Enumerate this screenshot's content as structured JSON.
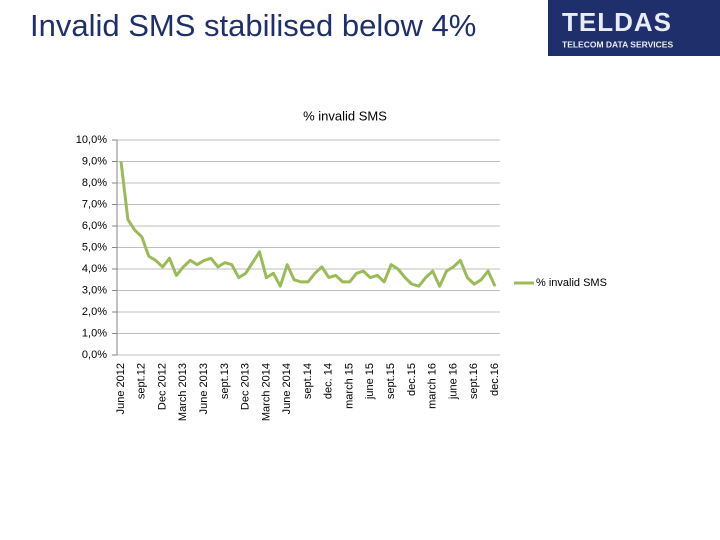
{
  "slide": {
    "title": "Invalid SMS stabilised below 4%",
    "logo": {
      "name": "TELDAS",
      "tagline": "TELECOM DATA SERVICES"
    }
  },
  "chart_data": {
    "type": "line",
    "title": "% invalid SMS",
    "categories": [
      "June 2012",
      null,
      null,
      "sept.12",
      null,
      null,
      "Dec 2012",
      null,
      null,
      "March 2013",
      null,
      null,
      "June 2013",
      null,
      null,
      "sept.13",
      null,
      null,
      "Dec 2013",
      null,
      null,
      "March 2014",
      null,
      null,
      "June 2014",
      null,
      null,
      "sept.14",
      null,
      null,
      "dec. 14",
      null,
      null,
      "march 15",
      null,
      null,
      "june 15",
      null,
      null,
      "sept.15",
      null,
      null,
      "dec.15",
      null,
      null,
      "march 16",
      null,
      null,
      "june 16",
      null,
      null,
      "sept.16",
      null,
      null,
      "dec.16"
    ],
    "series": [
      {
        "name": "% invalid SMS",
        "color": "#9bbb59",
        "values": [
          9.0,
          6.3,
          5.8,
          5.5,
          4.6,
          4.4,
          4.1,
          4.5,
          3.7,
          4.1,
          4.4,
          4.2,
          4.4,
          4.5,
          4.1,
          4.3,
          4.2,
          3.6,
          3.8,
          4.3,
          4.8,
          3.6,
          3.8,
          3.2,
          4.2,
          3.5,
          3.4,
          3.4,
          3.8,
          4.1,
          3.6,
          3.7,
          3.4,
          3.4,
          3.8,
          3.9,
          3.6,
          3.7,
          3.4,
          4.2,
          4.0,
          3.6,
          3.3,
          3.2,
          3.6,
          3.9,
          3.2,
          3.9,
          4.1,
          4.4,
          3.6,
          3.3,
          3.5,
          3.9,
          3.2
        ]
      }
    ],
    "ylim": [
      0,
      10
    ],
    "yticks": [
      {
        "value": 0,
        "label": "0,0%"
      },
      {
        "value": 1,
        "label": "1,0%"
      },
      {
        "value": 2,
        "label": "2,0%"
      },
      {
        "value": 3,
        "label": "3,0%"
      },
      {
        "value": 4,
        "label": "4,0%"
      },
      {
        "value": 5,
        "label": "5,0%"
      },
      {
        "value": 6,
        "label": "6,0%"
      },
      {
        "value": 7,
        "label": "7,0%"
      },
      {
        "value": 8,
        "label": "8,0%"
      },
      {
        "value": 9,
        "label": "9,0%"
      },
      {
        "value": 10,
        "label": "10,0%"
      }
    ],
    "grid": true,
    "legend": "right"
  }
}
